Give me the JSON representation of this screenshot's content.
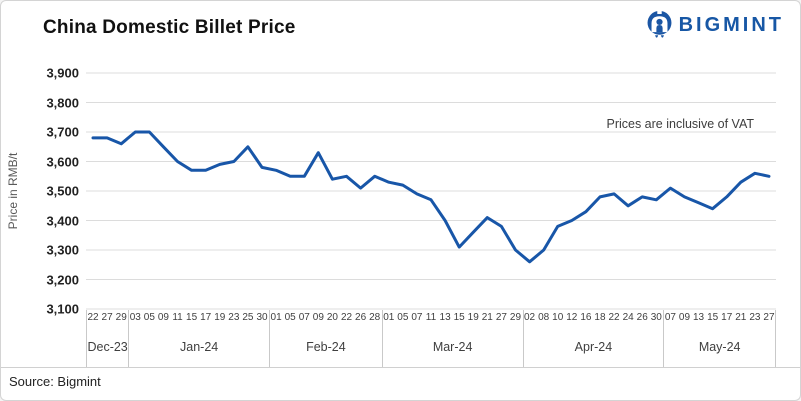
{
  "header": {
    "title": "China Domestic Billet Price",
    "logo_text": "BIGMINT"
  },
  "footer": {
    "source": "Source: Bigmint"
  },
  "chart_data": {
    "type": "line",
    "title": "China Domestic Billet Price",
    "ylabel": "Price in RMB/t",
    "annotation": "Prices are inclusive of VAT",
    "ylim": [
      3100,
      3900
    ],
    "ytick_step": 100,
    "ytick_labels": [
      "3,900",
      "3,800",
      "3,700",
      "3,600",
      "3,500",
      "3,400",
      "3,300",
      "3,200",
      "3,100"
    ],
    "grid": "horizontal",
    "legend": "none",
    "line_color": "#1856A8",
    "grid_color": "#dcdcdc",
    "month_groups": [
      {
        "label": "Dec-23",
        "days": [
          "22",
          "27",
          "29"
        ]
      },
      {
        "label": "Jan-24",
        "days": [
          "03",
          "05",
          "09",
          "11",
          "15",
          "17",
          "19",
          "23",
          "25",
          "30"
        ]
      },
      {
        "label": "Feb-24",
        "days": [
          "01",
          "05",
          "07",
          "09",
          "20",
          "22",
          "26",
          "28"
        ]
      },
      {
        "label": "Mar-24",
        "days": [
          "01",
          "05",
          "07",
          "11",
          "13",
          "15",
          "19",
          "21",
          "27",
          "29"
        ]
      },
      {
        "label": "Apr-24",
        "days": [
          "02",
          "08",
          "10",
          "12",
          "16",
          "18",
          "22",
          "24",
          "26",
          "30"
        ]
      },
      {
        "label": "May-24",
        "days": [
          "07",
          "09",
          "13",
          "15",
          "17",
          "21",
          "23",
          "27"
        ]
      }
    ],
    "values": [
      3680,
      3680,
      3660,
      3700,
      3700,
      3650,
      3600,
      3570,
      3570,
      3590,
      3600,
      3650,
      3580,
      3570,
      3550,
      3550,
      3630,
      3540,
      3550,
      3510,
      3550,
      3530,
      3520,
      3490,
      3470,
      3400,
      3310,
      3360,
      3410,
      3380,
      3300,
      3260,
      3300,
      3380,
      3400,
      3430,
      3480,
      3490,
      3450,
      3480,
      3470,
      3510,
      3480,
      3460,
      3440,
      3480,
      3530,
      3560,
      3550
    ]
  }
}
